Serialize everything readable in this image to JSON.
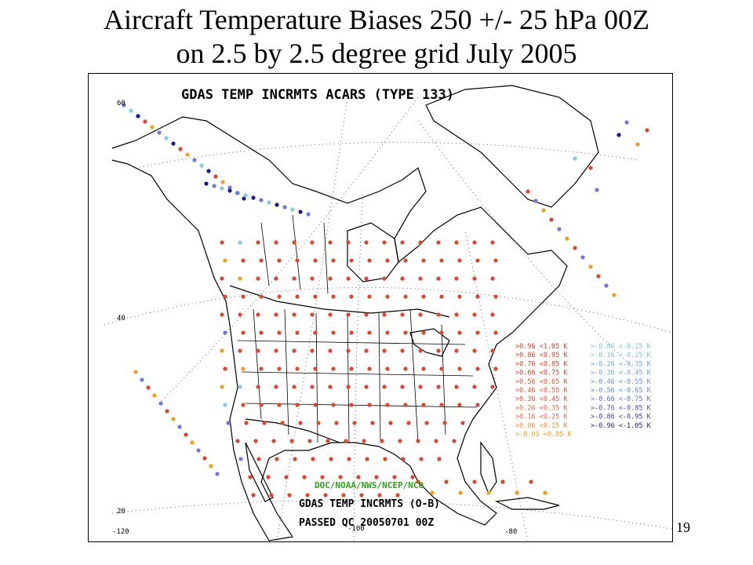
{
  "slide": {
    "title_line1": "Aircraft Temperature Biases 250 +/- 25 hPa 00Z",
    "title_line2": "on 2.5 by 2.5 degree grid July 2005",
    "page_number": "19"
  },
  "map": {
    "header": "GDAS TEMP INCRMTS ACARS (TYPE 133)",
    "credit": "DOC/NOAA/NWS/NCEP/NCO",
    "footer_line1": "GDAS TEMP INCRMTS (O-B)",
    "footer_line2": "PASSED QC  20050701 00Z",
    "lat_labels": [
      "60",
      "40",
      "20"
    ],
    "lon_labels": [
      "-120",
      "-100",
      "-80"
    ]
  },
  "legend": {
    "warm": [
      {
        "label": ">0.96 <1.05 K",
        "color": "#e0402a"
      },
      {
        "label": ">0.86 <0.95 K",
        "color": "#e0402a"
      },
      {
        "label": ">0.76 <0.85 K",
        "color": "#e0402a"
      },
      {
        "label": ">0.66 <0.75 K",
        "color": "#e0402a"
      },
      {
        "label": ">0.56 <0.65 K",
        "color": "#e8553a"
      },
      {
        "label": ">0.46 <0.55 K",
        "color": "#e8553a"
      },
      {
        "label": ">0.36 <0.45 K",
        "color": "#e8553a"
      },
      {
        "label": ">0.26 <0.35 K",
        "color": "#ec6a45"
      },
      {
        "label": ">0.16 <0.25 K",
        "color": "#ec6a45"
      },
      {
        "label": ">0.06 <0.15 K",
        "color": "#f09030"
      },
      {
        "label": ">-0.05 <0.05 K",
        "color": "#f0a020"
      }
    ],
    "cold": [
      {
        "label": ">-0.06 <-0.15 K",
        "color": "#7ec0f0"
      },
      {
        "label": ">-0.16 <-0.25 K",
        "color": "#7ec0f0"
      },
      {
        "label": ">-0.26 <-0.35 K",
        "color": "#6aa8ee"
      },
      {
        "label": ">-0.36 <-0.45 K",
        "color": "#6aa8ee"
      },
      {
        "label": ">-0.46 <-0.55 K",
        "color": "#6a8ce8"
      },
      {
        "label": ">-0.56 <-0.65 K",
        "color": "#6a8ce8"
      },
      {
        "label": ">-0.66 <-0.75 K",
        "color": "#5a6ce0"
      },
      {
        "label": ">-0.76 <-0.85 K",
        "color": "#4a50d0"
      },
      {
        "label": ">-0.86 <-0.95 K",
        "color": "#3a3cc0"
      },
      {
        "label": ">-0.96 <-1.05 K",
        "color": "#1a1a90"
      }
    ]
  },
  "colors": {
    "header_text": "#000000",
    "credit_text": "#2fa020",
    "warm_dot": "#e0452f",
    "orange_dot": "#f0a020",
    "cold_light": "#88c8f4",
    "cold_mid": "#6f78e6",
    "cold_dark": "#1a1a90",
    "coast": "#000000",
    "grid": "#333333"
  }
}
